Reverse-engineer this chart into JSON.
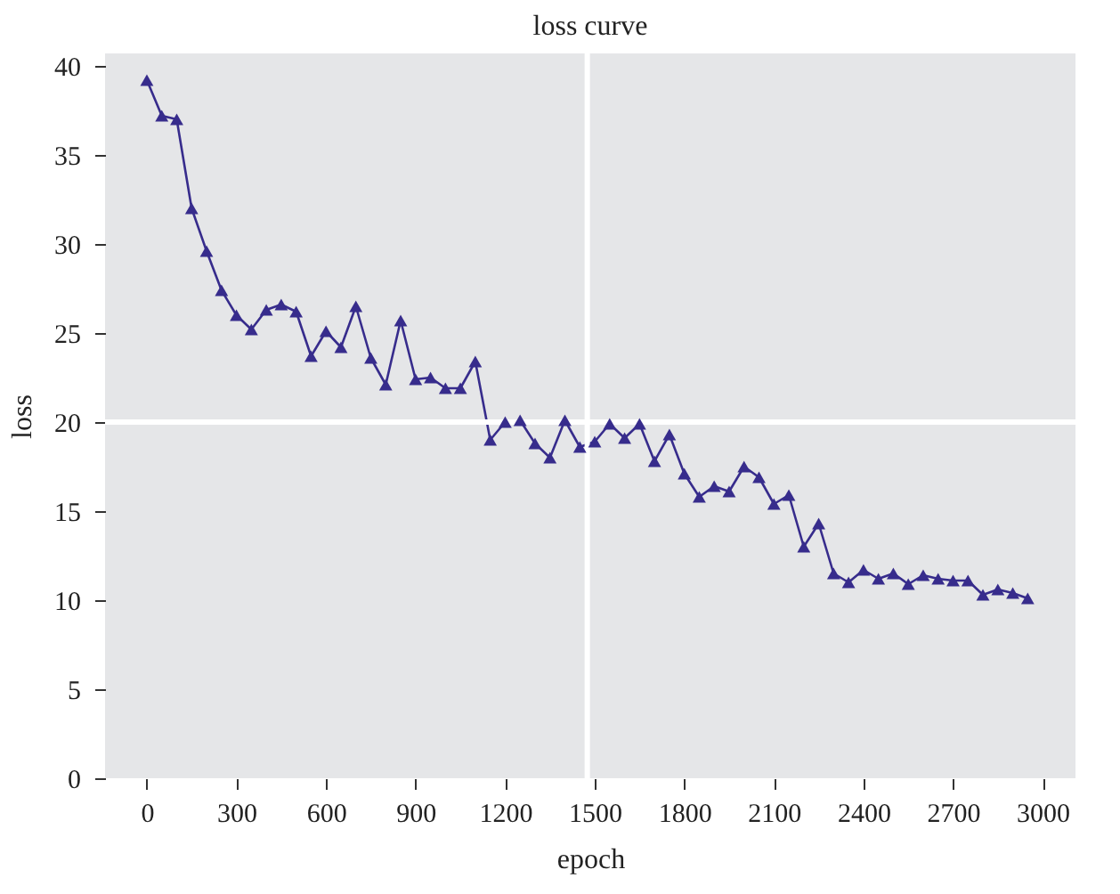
{
  "chart_data": {
    "type": "line",
    "title": "loss curve",
    "xlabel": "epoch",
    "ylabel": "loss",
    "x": [
      0,
      50,
      100,
      150,
      200,
      250,
      300,
      350,
      400,
      450,
      500,
      550,
      600,
      650,
      700,
      750,
      800,
      850,
      900,
      950,
      1000,
      1050,
      1100,
      1150,
      1200,
      1250,
      1300,
      1350,
      1400,
      1450,
      1500,
      1550,
      1600,
      1650,
      1700,
      1750,
      1800,
      1850,
      1900,
      1950,
      2000,
      2050,
      2100,
      2150,
      2200,
      2250,
      2300,
      2350,
      2400,
      2450,
      2500,
      2550,
      2600,
      2650,
      2700,
      2750,
      2800,
      2850,
      2900,
      2950
    ],
    "series": [
      {
        "color": "#372c8c",
        "values": [
          39.2,
          37.2,
          37.0,
          32.0,
          29.6,
          27.4,
          26.0,
          25.2,
          26.3,
          26.6,
          26.2,
          23.7,
          25.1,
          24.2,
          26.5,
          23.6,
          22.1,
          25.7,
          22.4,
          22.5,
          21.9,
          21.9,
          23.4,
          19.0,
          20.0,
          20.1,
          18.8,
          18.0,
          20.1,
          18.6,
          18.9,
          19.9,
          19.1,
          19.9,
          17.8,
          19.3,
          17.1,
          15.8,
          16.4,
          16.1,
          17.5,
          16.9,
          15.4,
          15.9,
          13.0,
          14.3,
          11.5,
          11.0,
          11.7,
          11.2,
          11.5,
          10.9,
          11.4,
          11.2,
          11.1,
          11.1,
          10.3,
          10.6,
          10.4,
          10.1
        ]
      }
    ],
    "xlim": [
      -140,
      3110
    ],
    "xticks": [
      0,
      300,
      600,
      900,
      1200,
      1500,
      1800,
      2100,
      2400,
      2700,
      3000
    ],
    "ylim": [
      0,
      40.7
    ],
    "yticks": [
      0,
      5,
      10,
      15,
      20,
      25,
      30,
      35,
      40
    ],
    "marker": "triangle",
    "line_style": "solid",
    "ref_lines": [
      {
        "axis": "x",
        "value": 1475,
        "color": "#ffffff"
      },
      {
        "axis": "y",
        "value": 20,
        "color": "#ffffff"
      }
    ]
  }
}
